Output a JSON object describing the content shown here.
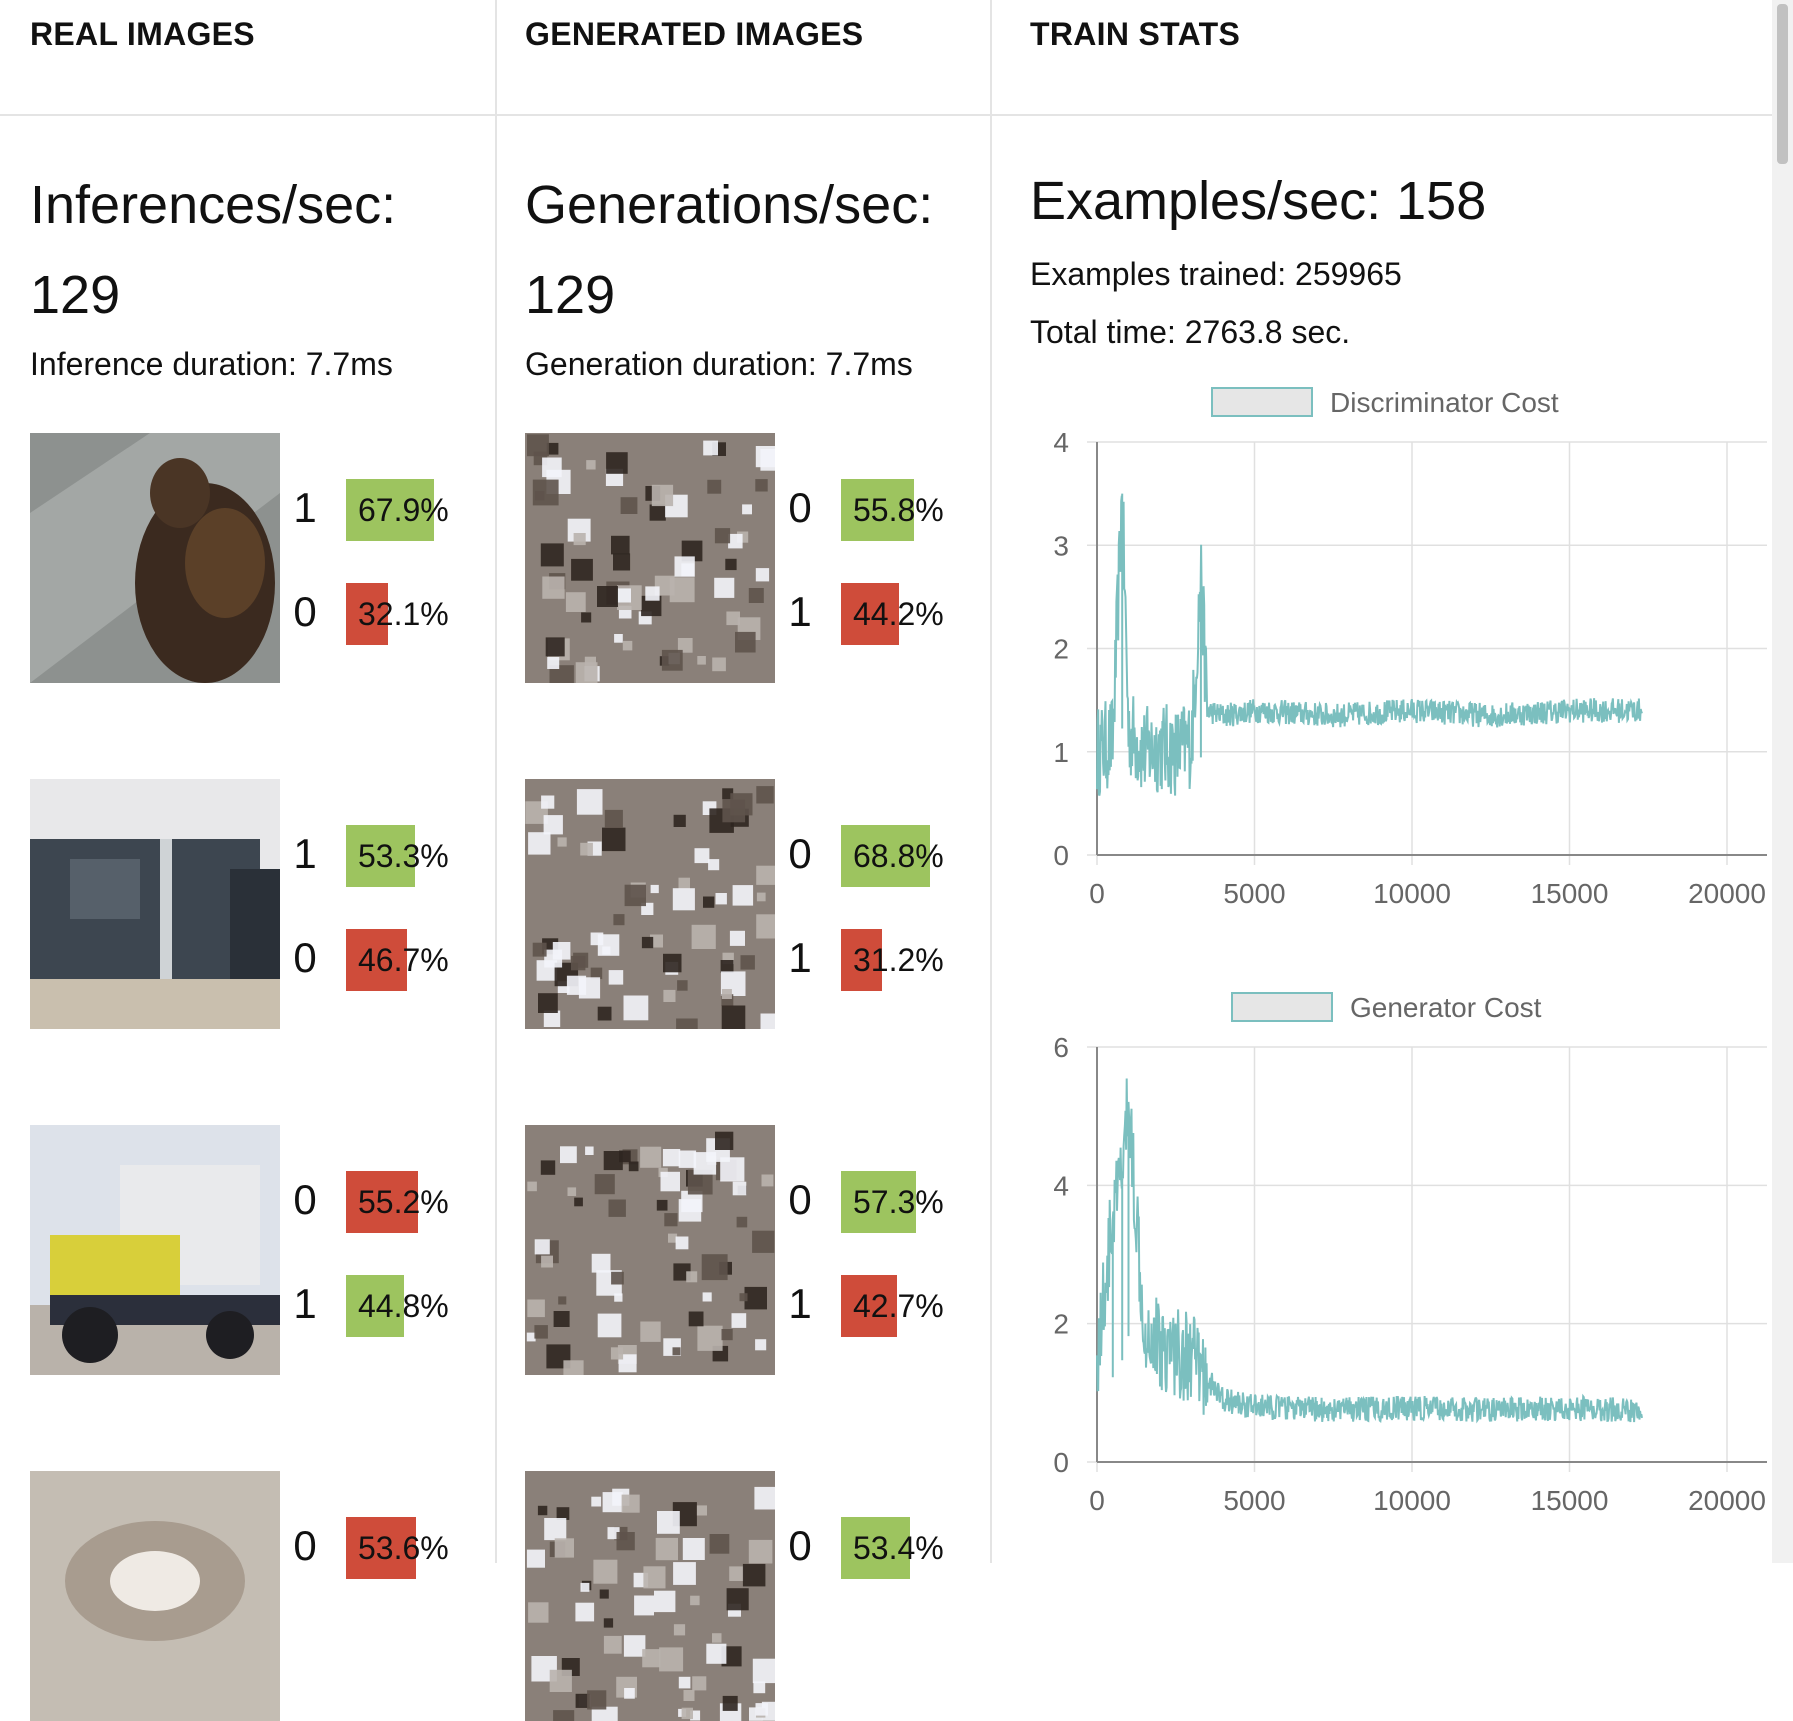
{
  "real_column": {
    "title": "REAL IMAGES",
    "rate_label": "Inferences/sec:",
    "rate_value": "129",
    "duration_text": "Inference duration: 7.7ms",
    "items": [
      {
        "image": "cat-photo",
        "predictions": [
          {
            "class": "1",
            "percent": "67.9%",
            "value": 67.9,
            "color": "green"
          },
          {
            "class": "0",
            "percent": "32.1%",
            "value": 32.1,
            "color": "red"
          }
        ]
      },
      {
        "image": "truck-photo",
        "predictions": [
          {
            "class": "1",
            "percent": "53.3%",
            "value": 53.3,
            "color": "green"
          },
          {
            "class": "0",
            "percent": "46.7%",
            "value": 46.7,
            "color": "red"
          }
        ]
      },
      {
        "image": "yellow-truck-photo",
        "predictions": [
          {
            "class": "0",
            "percent": "55.2%",
            "value": 55.2,
            "color": "red"
          },
          {
            "class": "1",
            "percent": "44.8%",
            "value": 44.8,
            "color": "green"
          }
        ]
      },
      {
        "image": "animal-photo",
        "predictions": [
          {
            "class": "0",
            "percent": "53.6%",
            "value": 53.6,
            "color": "red"
          }
        ]
      }
    ]
  },
  "generated_column": {
    "title": "GENERATED IMAGES",
    "rate_label": "Generations/sec:",
    "rate_value": "129",
    "duration_text": "Generation duration: 7.7ms",
    "items": [
      {
        "image": "generated-noise",
        "predictions": [
          {
            "class": "0",
            "percent": "55.8%",
            "value": 55.8,
            "color": "green"
          },
          {
            "class": "1",
            "percent": "44.2%",
            "value": 44.2,
            "color": "red"
          }
        ]
      },
      {
        "image": "generated-noise",
        "predictions": [
          {
            "class": "0",
            "percent": "68.8%",
            "value": 68.8,
            "color": "green"
          },
          {
            "class": "1",
            "percent": "31.2%",
            "value": 31.2,
            "color": "red"
          }
        ]
      },
      {
        "image": "generated-noise",
        "predictions": [
          {
            "class": "0",
            "percent": "57.3%",
            "value": 57.3,
            "color": "green"
          },
          {
            "class": "1",
            "percent": "42.7%",
            "value": 42.7,
            "color": "red"
          }
        ]
      },
      {
        "image": "generated-noise",
        "predictions": [
          {
            "class": "0",
            "percent": "53.4%",
            "value": 53.4,
            "color": "green"
          }
        ]
      }
    ]
  },
  "train_column": {
    "title": "TRAIN STATS",
    "examples_per_sec": "Examples/sec: 158",
    "examples_trained": "Examples trained: 259965",
    "total_time": "Total time: 2763.8 sec."
  },
  "colors": {
    "green": "#9dc45f",
    "red": "#cf4c3a",
    "line": "#7bbfbf"
  },
  "chart_data": [
    {
      "type": "line",
      "legend": "Discriminator Cost",
      "xlim": [
        0,
        20000
      ],
      "ylim": [
        0,
        4
      ],
      "xticks": [
        "0",
        "5000",
        "10000",
        "15000",
        "20000"
      ],
      "yticks": [
        "0",
        "1",
        "2",
        "3",
        "4"
      ],
      "x_max_data": 17300,
      "series": [
        {
          "name": "Discriminator Cost",
          "x": [
            0,
            500,
            800,
            1000,
            1500,
            2000,
            2500,
            3000,
            3300,
            3500,
            4000,
            5000,
            7500,
            10000,
            12500,
            15000,
            17300
          ],
          "y": [
            1.0,
            1.1,
            3.5,
            1.2,
            1.0,
            1.05,
            1.0,
            1.1,
            2.7,
            1.4,
            1.35,
            1.4,
            1.35,
            1.4,
            1.35,
            1.4,
            1.4
          ]
        }
      ]
    },
    {
      "type": "line",
      "legend": "Generator Cost",
      "xlim": [
        0,
        20000
      ],
      "ylim": [
        0,
        6
      ],
      "xticks": [
        "0",
        "5000",
        "10000",
        "15000",
        "20000"
      ],
      "yticks": [
        "0",
        "2",
        "4",
        "6"
      ],
      "x_max_data": 17300,
      "series": [
        {
          "name": "Generator Cost",
          "x": [
            0,
            500,
            800,
            1000,
            1500,
            2000,
            3000,
            4000,
            5000,
            7500,
            10000,
            12500,
            15000,
            17300
          ],
          "y": [
            1.5,
            3.5,
            4.2,
            5.2,
            2.0,
            1.7,
            1.5,
            0.9,
            0.8,
            0.75,
            0.78,
            0.75,
            0.78,
            0.75
          ]
        }
      ]
    }
  ]
}
